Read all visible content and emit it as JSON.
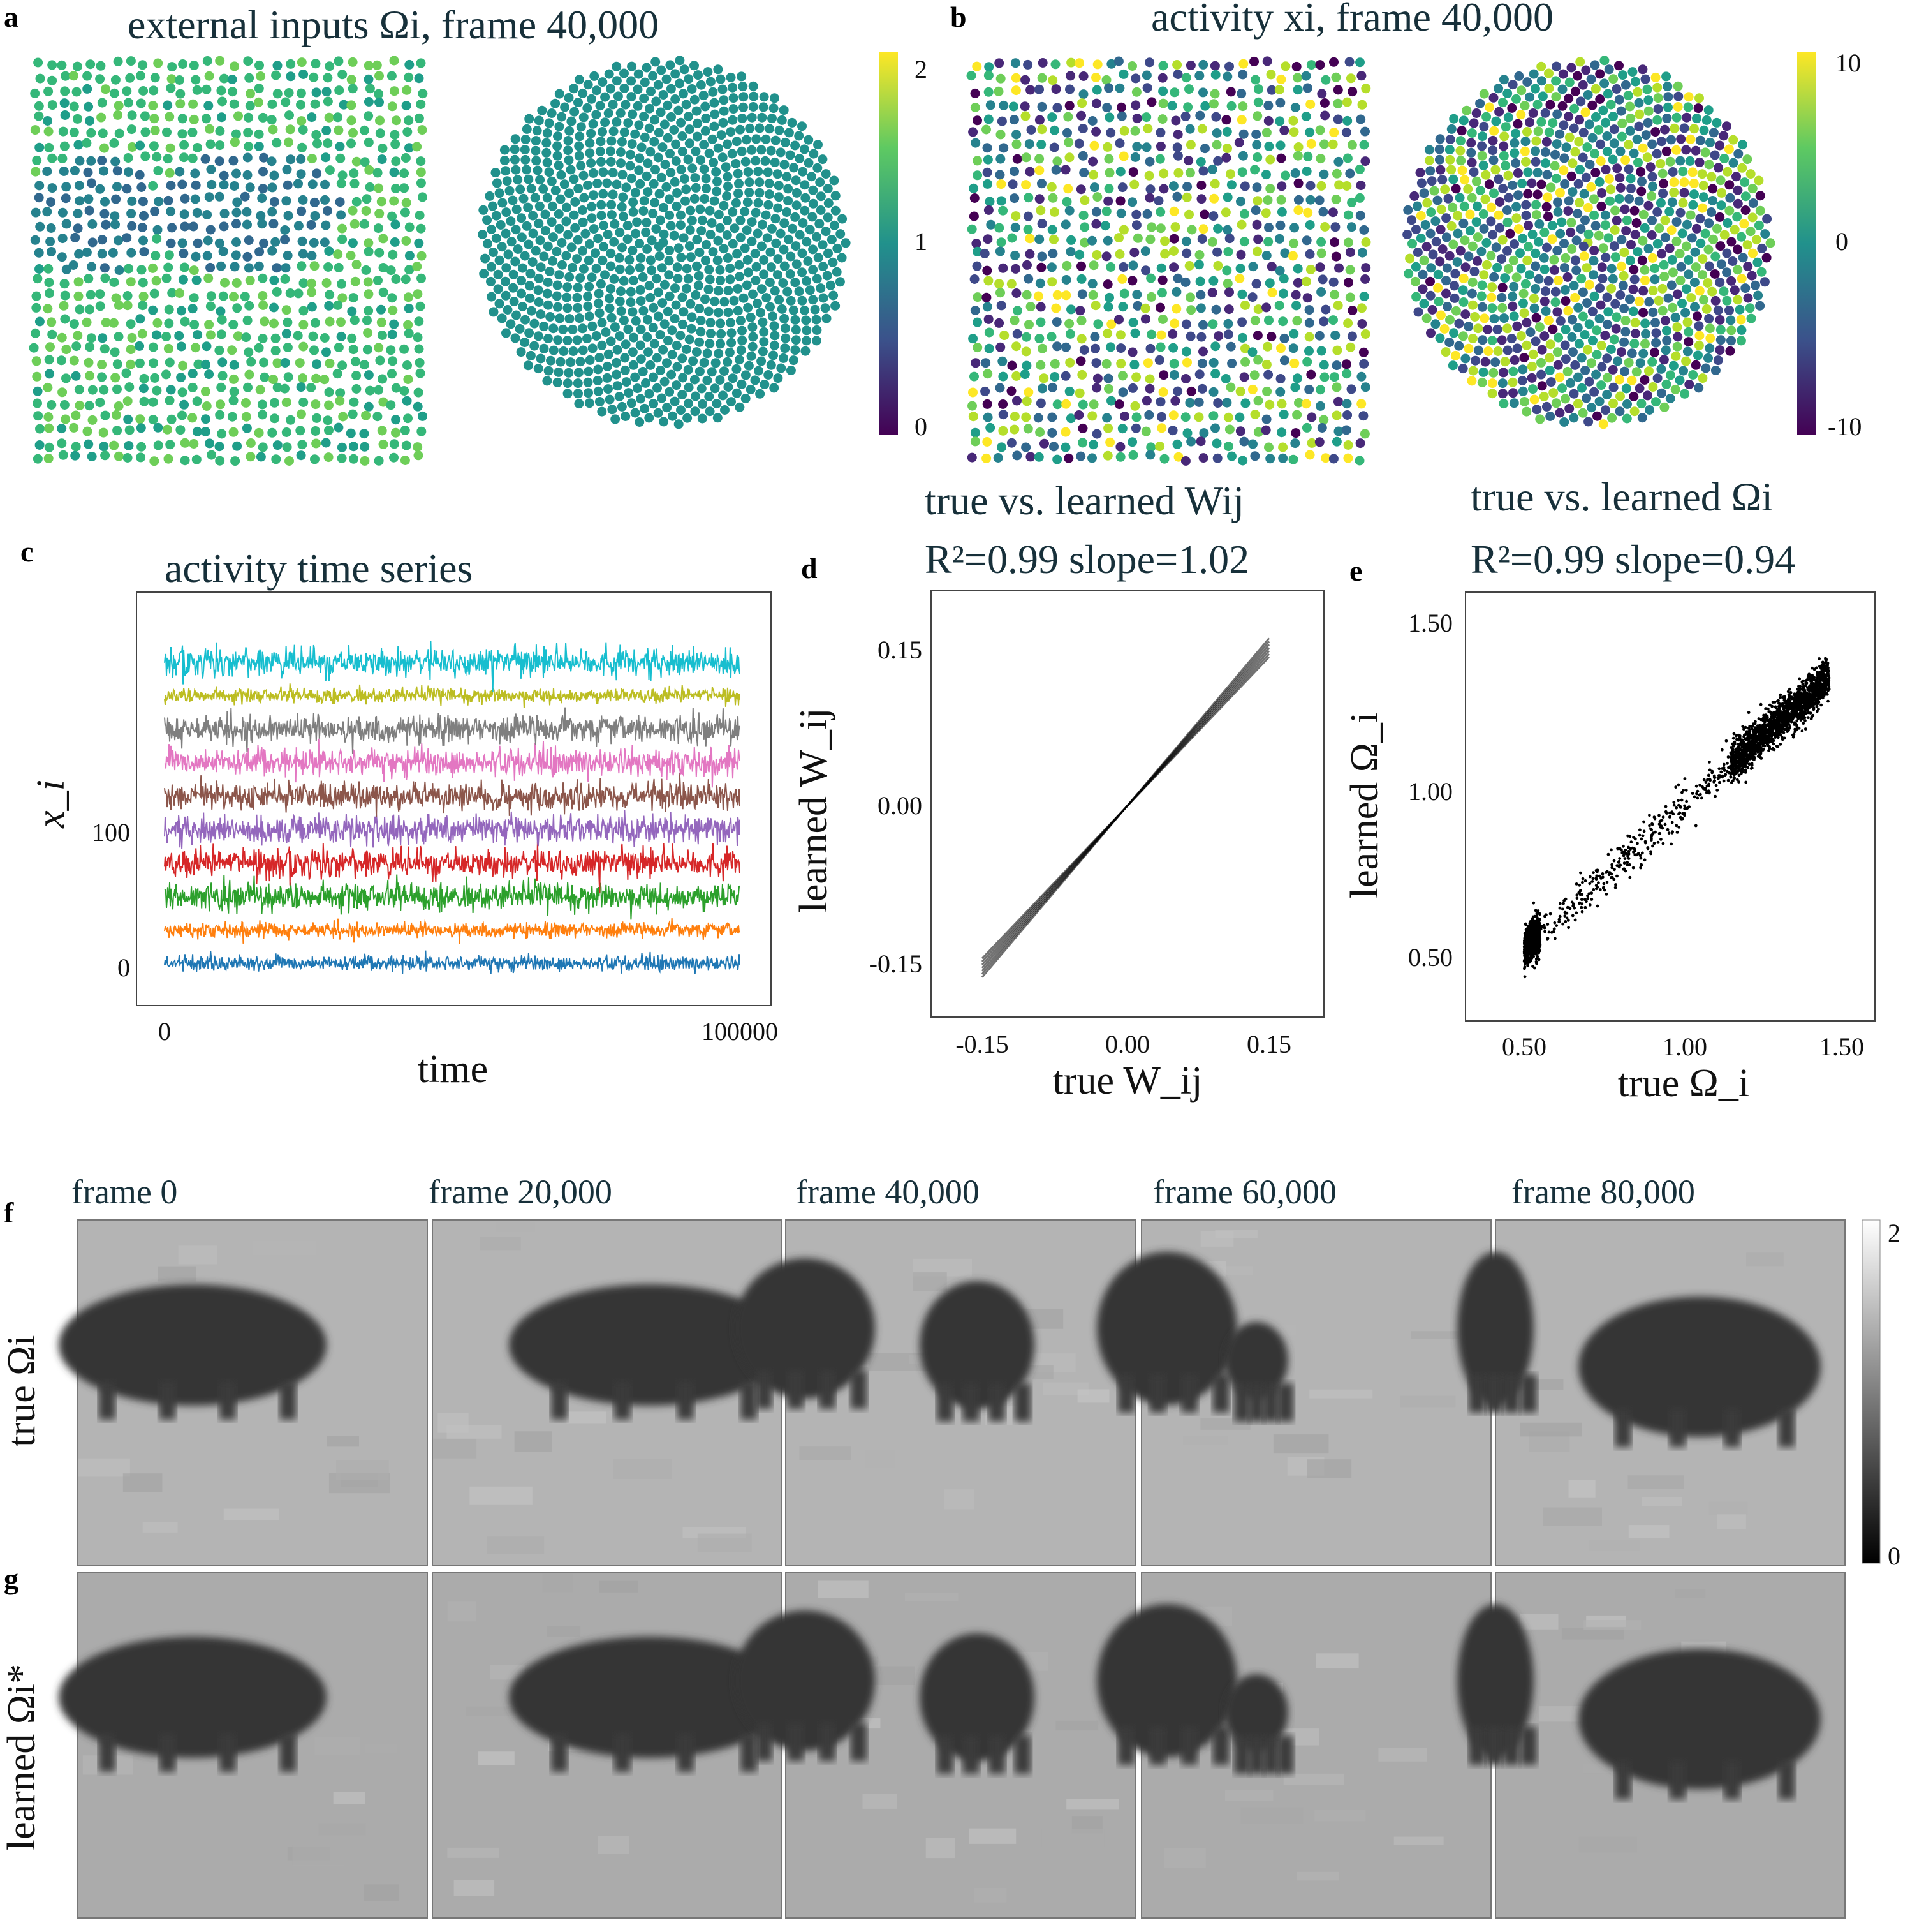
{
  "panels": {
    "a": {
      "letter": "a",
      "title": "external inputs Ωi, frame 40,000",
      "colorbar_ticks": [
        "2",
        "1",
        "0"
      ],
      "colorbar_range": [
        0,
        2
      ],
      "colormap": "viridis"
    },
    "b": {
      "letter": "b",
      "title": "activity xi, frame 40,000",
      "colorbar_ticks": [
        "10",
        "0",
        "-10"
      ],
      "colorbar_range": [
        -10,
        10
      ],
      "colormap": "viridis"
    },
    "c": {
      "letter": "c"
    },
    "d": {
      "letter": "d"
    },
    "e": {
      "letter": "e"
    },
    "f": {
      "letter": "f"
    },
    "g": {
      "letter": "g"
    }
  },
  "chart_data": [
    {
      "type": "line",
      "panel": "c",
      "title": "activity time series",
      "xlabel": "time",
      "ylabel": "x_i",
      "xlim": [
        0,
        100000
      ],
      "xticks": [
        "0",
        "100000"
      ],
      "yticks": [
        "0",
        "100"
      ],
      "series": [
        {
          "color": "#1f77b4",
          "offset": 0
        },
        {
          "color": "#ff7f0e",
          "offset": 25
        },
        {
          "color": "#2ca02c",
          "offset": 50
        },
        {
          "color": "#d62728",
          "offset": 75
        },
        {
          "color": "#9467bd",
          "offset": 100
        },
        {
          "color": "#8c564b",
          "offset": 125
        },
        {
          "color": "#e377c2",
          "offset": 150
        },
        {
          "color": "#7f7f7f",
          "offset": 175
        },
        {
          "color": "#bcbd22",
          "offset": 200
        },
        {
          "color": "#17becf",
          "offset": 225
        }
      ]
    },
    {
      "type": "scatter",
      "panel": "d",
      "title_line1": "true vs. learned Wij",
      "title_line2": "R²=0.99 slope=1.02",
      "xlabel": "true W_ij",
      "ylabel": "learned W_ij",
      "xlim": [
        -0.15,
        0.15
      ],
      "ylim": [
        -0.15,
        0.15
      ],
      "xticks": [
        "-0.15",
        "0.00",
        "0.15"
      ],
      "yticks": [
        "0.15",
        "0.00",
        "-0.15"
      ],
      "r2": 0.99,
      "slope": 1.02
    },
    {
      "type": "scatter",
      "panel": "e",
      "title_line1": "true vs. learned Ωi",
      "title_line2": "R²=0.99 slope=0.94",
      "xlabel": "true Ω_i",
      "ylabel": "learned Ω_i",
      "xlim": [
        0.5,
        1.5
      ],
      "ylim": [
        0.5,
        1.5
      ],
      "xticks": [
        "0.50",
        "1.00",
        "1.50"
      ],
      "yticks": [
        "1.50",
        "1.00",
        "0.50"
      ],
      "r2": 0.99,
      "slope": 0.94
    }
  ],
  "frames": {
    "titles": [
      "frame 0",
      "frame 20,000",
      "frame 40,000",
      "frame 60,000",
      "frame 80,000"
    ],
    "row_true_label": "true Ωi",
    "row_learned_label": "learned Ωi*",
    "colorbar_ticks": [
      "2",
      "0"
    ],
    "colorbar_range": [
      0,
      2
    ],
    "colormap": "gray"
  }
}
